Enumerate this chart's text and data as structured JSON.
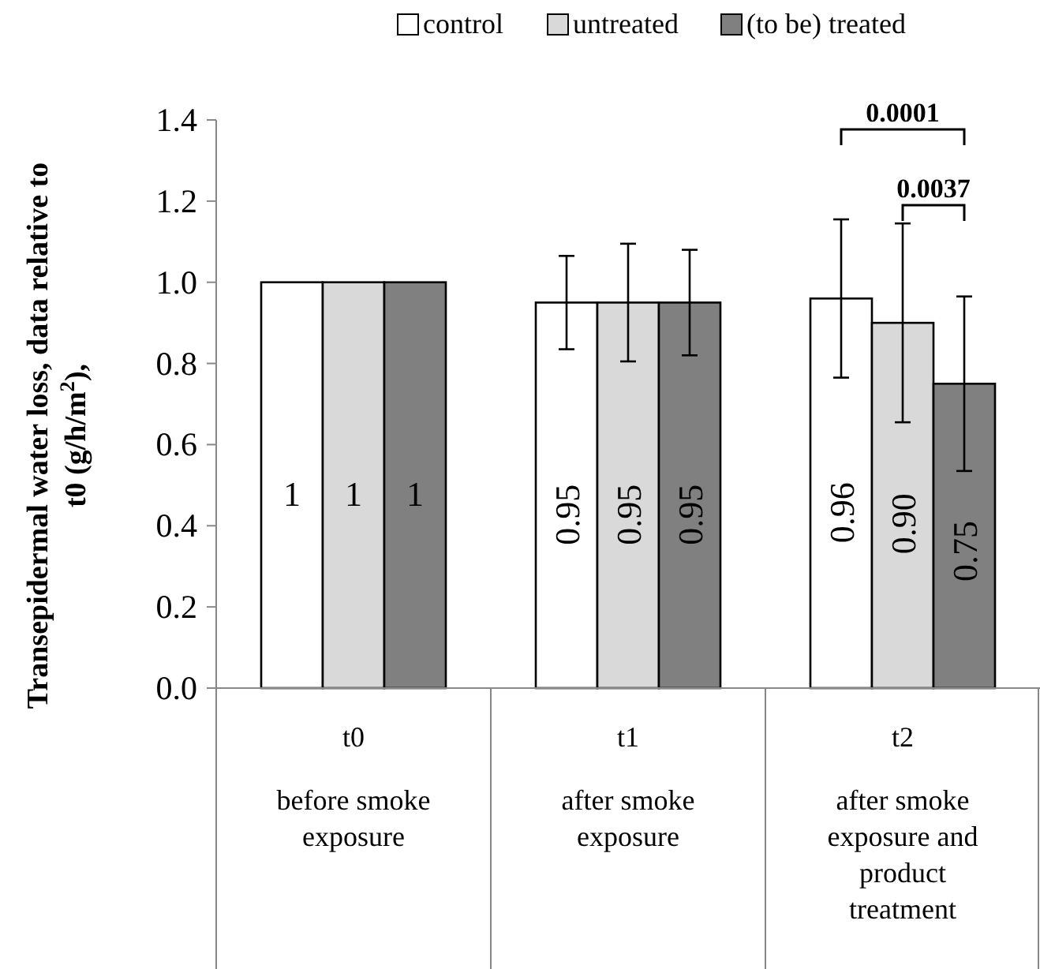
{
  "chart_data": {
    "type": "bar",
    "ylabel": "Transepidermal water loss, data relative to t0 (g/h/m$^{2}$),",
    "categories": [
      "t0\nbefore smoke\nexposure",
      "t1\nafter smoke\nexposure",
      "t2\nafter smoke\nexposure and\nproduct\ntreatment"
    ],
    "series": [
      {
        "name": "control",
        "color": "#ffffff",
        "values": [
          1,
          0.95,
          0.96
        ],
        "errors": [
          null,
          0.115,
          0.195
        ],
        "value_labels": [
          "1",
          "0.95",
          "0.96"
        ]
      },
      {
        "name": "untreated",
        "color": "#d9d9d9",
        "values": [
          1,
          0.95,
          0.9
        ],
        "errors": [
          null,
          0.145,
          0.245
        ],
        "value_labels": [
          "1",
          "0.95",
          "0.90"
        ]
      },
      {
        "name": "(to be) treated",
        "color": "#808080",
        "values": [
          1,
          0.95,
          0.75
        ],
        "errors": [
          null,
          0.13,
          0.215
        ],
        "value_labels": [
          "1",
          "0.95",
          "0.75"
        ]
      }
    ],
    "ylim": [
      0,
      1.4
    ],
    "yticks": [
      {
        "value": 0,
        "label": "0.0"
      },
      {
        "value": 0.2,
        "label": "0.2"
      },
      {
        "value": 0.4,
        "label": "0.4"
      },
      {
        "value": 0.6,
        "label": "0.6"
      },
      {
        "value": 0.8,
        "label": "0.8"
      },
      {
        "value": 1,
        "label": "1.0"
      },
      {
        "value": 1.2,
        "label": "1.2"
      },
      {
        "value": 1.4,
        "label": "1.4"
      }
    ],
    "annotations": [
      "0.0001",
      "0.0037"
    ],
    "legend": "top",
    "grid": false
  }
}
